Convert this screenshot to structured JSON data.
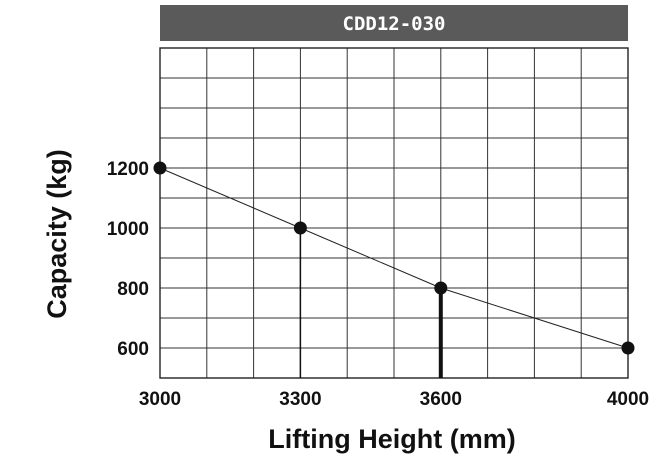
{
  "chart_data": {
    "type": "line",
    "title": "CDD12-030",
    "xlabel": "Lifting Height (mm)",
    "ylabel": "Capacity (kg)",
    "x_ticks": [
      3000,
      3300,
      3600,
      4000
    ],
    "y_ticks": [
      600,
      800,
      1000,
      1200
    ],
    "series": [
      {
        "x": [
          3000,
          3300,
          3600,
          4000
        ],
        "y": [
          1200,
          1000,
          800,
          600
        ]
      }
    ],
    "drop_lines": [
      {
        "x": 3300,
        "y": 1000,
        "weight": "thin"
      },
      {
        "x": 3600,
        "y": 800,
        "weight": "thick"
      }
    ],
    "grid": true,
    "colors": {
      "title_bar": "#5a5a5a",
      "title_text": "#ffffff",
      "grid": "#333333",
      "line": "#222222",
      "points": "#111111"
    }
  }
}
